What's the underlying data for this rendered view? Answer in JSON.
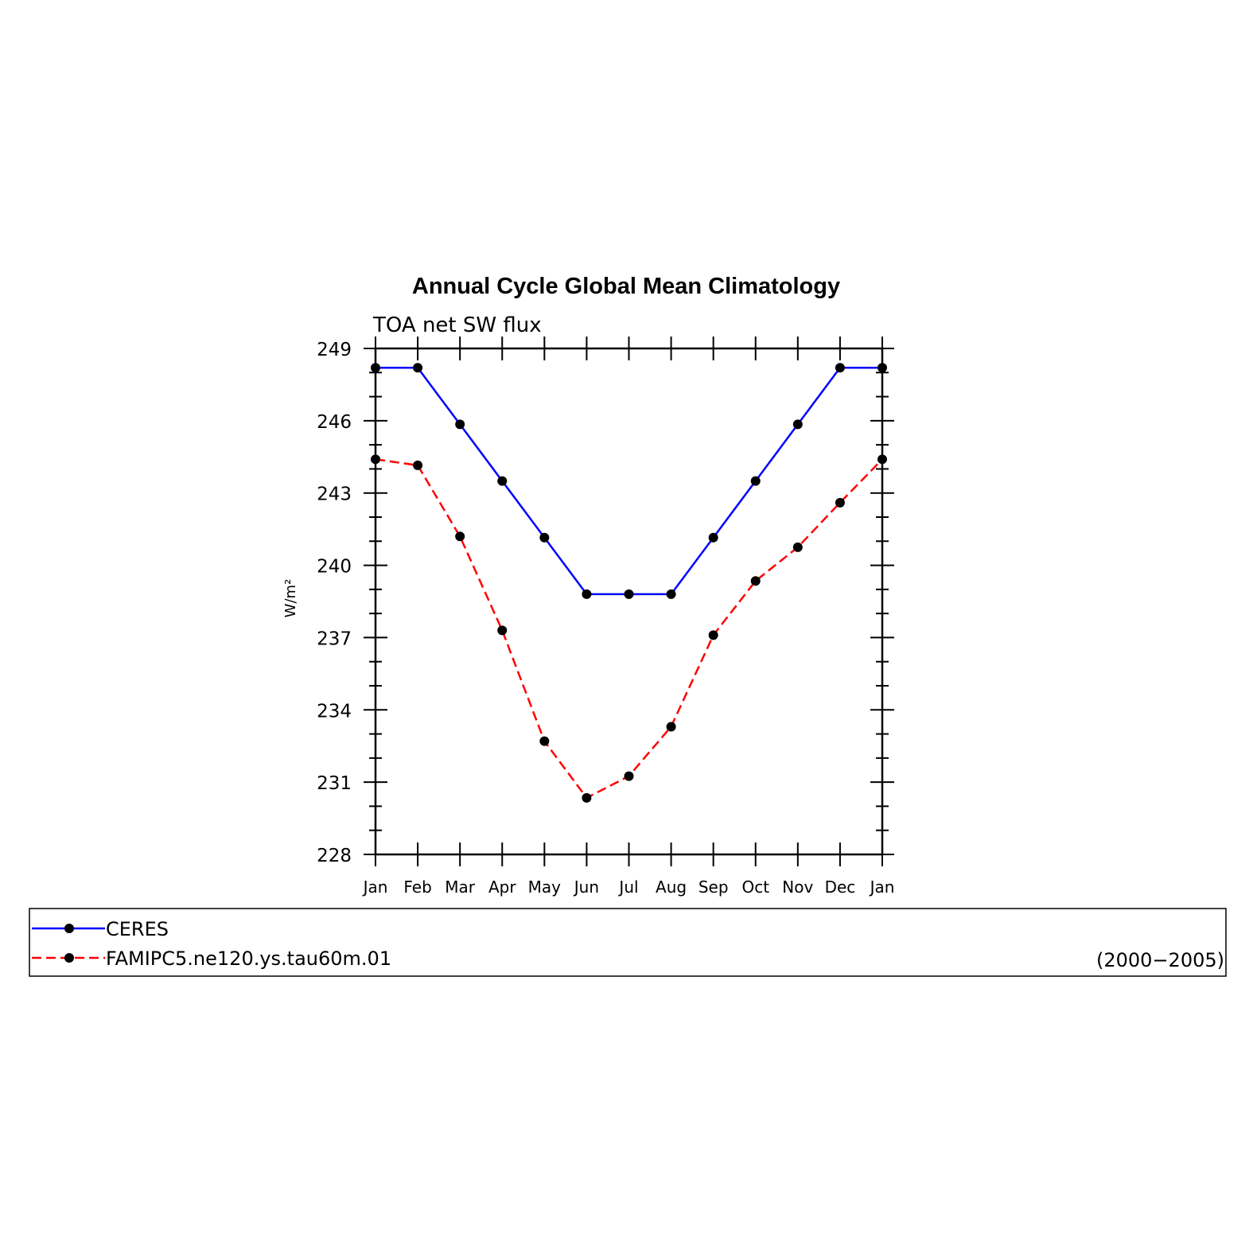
{
  "chart_data": {
    "type": "line",
    "title": "Annual Cycle Global Mean Climatology",
    "subtitle": "TOA net SW flux",
    "ylabel": "W/m²",
    "xlabel": "",
    "categories": [
      "Jan",
      "Feb",
      "Mar",
      "Apr",
      "May",
      "Jun",
      "Jul",
      "Aug",
      "Sep",
      "Oct",
      "Nov",
      "Dec",
      "Jan"
    ],
    "ylim": [
      228,
      249
    ],
    "yticks": [
      228,
      231,
      234,
      237,
      240,
      243,
      246,
      249
    ],
    "grid": false,
    "legend_position": "bottom",
    "series": [
      {
        "name": "CERES",
        "color": "#0000ff",
        "style": "solid",
        "marker": "circle",
        "values": [
          248.2,
          248.2,
          245.85,
          243.5,
          241.15,
          238.8,
          238.8,
          238.8,
          241.15,
          243.5,
          245.85,
          248.2,
          248.2
        ]
      },
      {
        "name": "FAMIPC5.ne120.ys.tau60m.01",
        "color": "#ff0000",
        "style": "dashed",
        "marker": "circle",
        "values": [
          244.4,
          244.15,
          241.2,
          237.3,
          232.7,
          230.35,
          231.25,
          233.3,
          237.1,
          239.35,
          240.75,
          242.6,
          244.4
        ]
      }
    ],
    "legend_note": "(2000−2005)"
  }
}
